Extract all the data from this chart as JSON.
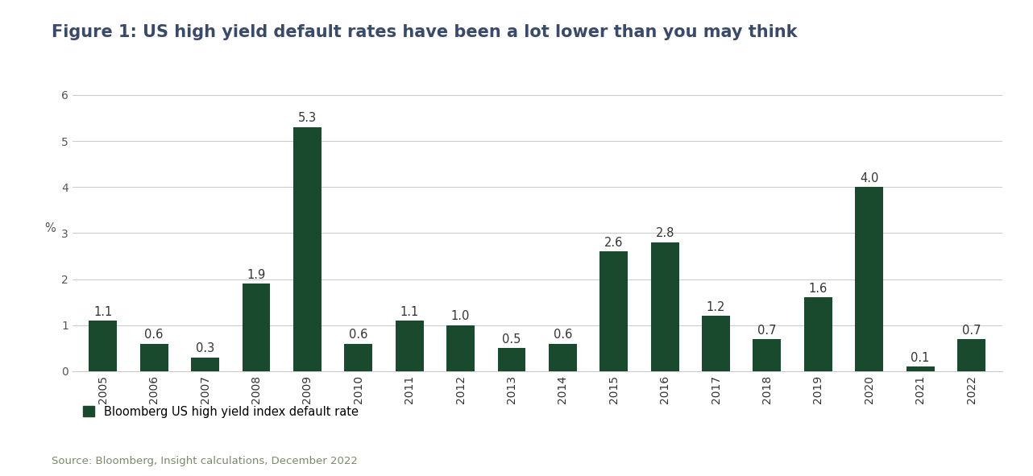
{
  "title": "Figure 1: US high yield default rates have been a lot lower than you may think",
  "years": [
    "2005",
    "2006",
    "2007",
    "2008",
    "2009",
    "2010",
    "2011",
    "2012",
    "2013",
    "2014",
    "2015",
    "2016",
    "2017",
    "2018",
    "2019",
    "2020",
    "2021",
    "2022"
  ],
  "values": [
    1.1,
    0.6,
    0.3,
    1.9,
    5.3,
    0.6,
    1.1,
    1.0,
    0.5,
    0.6,
    2.6,
    2.8,
    1.2,
    0.7,
    1.6,
    4.0,
    0.1,
    0.7
  ],
  "bar_color": "#1a4a2e",
  "ylabel": "%",
  "ylim": [
    0,
    6.2
  ],
  "yticks": [
    0,
    1,
    2,
    3,
    4,
    5,
    6
  ],
  "legend_label": "Bloomberg US high yield index default rate",
  "source_text": "Source: Bloomberg, Insight calculations, December 2022",
  "title_fontsize": 15,
  "title_color": "#3a4a6b",
  "label_fontsize": 10.5,
  "tick_fontsize": 10,
  "source_fontsize": 9.5,
  "source_color": "#7a8a6a",
  "background_color": "#ffffff",
  "grid_color": "#cccccc",
  "bar_label_color": "#333333"
}
